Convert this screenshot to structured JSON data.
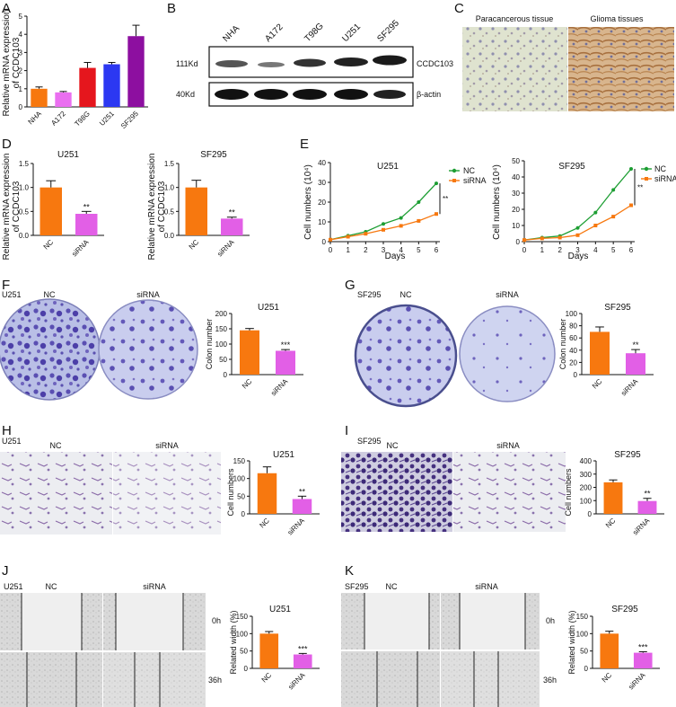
{
  "panels": {
    "A": "A",
    "B": "B",
    "C": "C",
    "D": "D",
    "E": "E",
    "F": "F",
    "G": "G",
    "H": "H",
    "I": "I",
    "J": "J",
    "K": "K"
  },
  "colors": {
    "orange": "#f7780f",
    "pink": "#ea6ff0",
    "red": "#e5161d",
    "blue": "#2c38f2",
    "purple": "#8d0fa0",
    "green": "#1d9e33",
    "siRNA_pink": "#e25fe6"
  },
  "panel_A": {
    "ylabel": "Relative mRNA expression of CCDC103",
    "ylabel_line1": "Relative mRNA expression",
    "ylabel_line2": "of CCDC103"
  },
  "panel_B": {
    "lanes": [
      "NHA",
      "A172",
      "T98G",
      "U251",
      "SF295"
    ],
    "band1_left": "111Kd",
    "band1_right": "CCDC103",
    "band2_left": "40Kd",
    "band2_right": "β-actin"
  },
  "panel_C": {
    "left_title": "Paracancerous tissue",
    "right_title": "Glioma tissues"
  },
  "panel_D": {
    "ylabel_line1": "Relative mRNA expression",
    "ylabel_line2": "of CCDC103",
    "sig": "**"
  },
  "panel_E": {
    "ylabel": "Cell numbers (10⁴)",
    "xlabel": "Days",
    "legend_nc": "NC",
    "legend_sirna": "siRNA",
    "sig": "**"
  },
  "panel_F": {
    "cell_line": "U251",
    "nc": "NC",
    "sirna": "siRNA",
    "ylabel": "Colon number",
    "sig": "***"
  },
  "panel_G": {
    "cell_line": "SF295",
    "nc": "NC",
    "sirna": "siRNA",
    "ylabel": "Colon number",
    "sig": "**"
  },
  "panel_H": {
    "cell_line": "U251",
    "nc": "NC",
    "sirna": "siRNA",
    "ylabel": "Cell numbers",
    "sig": "**"
  },
  "panel_I": {
    "cell_line": "SF295",
    "nc": "NC",
    "sirna": "siRNA",
    "ylabel": "Cell numbers",
    "sig": "**"
  },
  "panel_J": {
    "cell_line": "U251",
    "nc": "NC",
    "sirna": "siRNA",
    "t0": "0h",
    "t36": "36h",
    "ylabel": "Related width (%)",
    "sig": "***"
  },
  "panel_K": {
    "cell_line": "SF295",
    "nc": "NC",
    "sirna": "siRNA",
    "t0": "0h",
    "t36": "36h",
    "ylabel": "Related width (%)",
    "sig": "***"
  },
  "chart_data": [
    {
      "id": "A",
      "type": "bar",
      "categories": [
        "NHA",
        "A172",
        "T98G",
        "U251",
        "SF295"
      ],
      "values": [
        1.0,
        0.8,
        2.15,
        2.35,
        3.9
      ],
      "errors": [
        0.1,
        0.05,
        0.3,
        0.1,
        0.6
      ],
      "ylim": [
        0,
        5
      ],
      "yticks": [
        0,
        1,
        2,
        3,
        4,
        5
      ],
      "bar_colors": [
        "#f7780f",
        "#ea6ff0",
        "#e5161d",
        "#2c38f2",
        "#8d0fa0"
      ]
    },
    {
      "id": "D1",
      "type": "bar",
      "title": "U251",
      "categories": [
        "NC",
        "siRNA"
      ],
      "values": [
        1.0,
        0.45
      ],
      "errors": [
        0.14,
        0.05
      ],
      "ylim": [
        0,
        1.5
      ],
      "yticks": [
        0.0,
        0.5,
        1.0,
        1.5
      ]
    },
    {
      "id": "D2",
      "type": "bar",
      "title": "SF295",
      "categories": [
        "NC",
        "siRNA"
      ],
      "values": [
        1.0,
        0.35
      ],
      "errors": [
        0.15,
        0.03
      ],
      "ylim": [
        0,
        1.5
      ],
      "yticks": [
        0.0,
        0.5,
        1.0,
        1.5
      ]
    },
    {
      "id": "E1",
      "type": "line",
      "title": "U251",
      "x": [
        0,
        1,
        2,
        3,
        4,
        5,
        6
      ],
      "series": [
        {
          "name": "NC",
          "values": [
            1,
            3,
            5,
            9,
            12,
            20,
            29.5
          ]
        },
        {
          "name": "siRNA",
          "values": [
            1,
            2.5,
            4,
            6,
            8,
            10.5,
            14
          ]
        }
      ],
      "ylim": [
        0,
        40
      ],
      "yticks": [
        0,
        10,
        20,
        30,
        40
      ],
      "xlim": [
        0,
        6
      ]
    },
    {
      "id": "E2",
      "type": "line",
      "title": "SF295",
      "x": [
        0,
        1,
        2,
        3,
        4,
        5,
        6
      ],
      "series": [
        {
          "name": "NC",
          "values": [
            1,
            2.5,
            3.5,
            8.5,
            18,
            32,
            45
          ]
        },
        {
          "name": "siRNA",
          "values": [
            1,
            2,
            2.5,
            4,
            10,
            15.5,
            22.5
          ]
        }
      ],
      "ylim": [
        0,
        50
      ],
      "yticks": [
        0,
        10,
        20,
        30,
        40,
        50
      ],
      "xlim": [
        0,
        6
      ]
    },
    {
      "id": "F",
      "type": "bar",
      "title": "U251",
      "categories": [
        "NC",
        "siRNA"
      ],
      "values": [
        145,
        78
      ],
      "errors": [
        6,
        4
      ],
      "ylim": [
        0,
        200
      ],
      "yticks": [
        0,
        50,
        100,
        150,
        200
      ]
    },
    {
      "id": "G",
      "type": "bar",
      "title": "SF295",
      "categories": [
        "NC",
        "siRNA"
      ],
      "values": [
        70,
        35
      ],
      "errors": [
        8,
        6
      ],
      "ylim": [
        0,
        100
      ],
      "yticks": [
        0,
        20,
        40,
        60,
        80,
        100
      ]
    },
    {
      "id": "H",
      "type": "bar",
      "title": "U251",
      "categories": [
        "NC",
        "siRNA"
      ],
      "values": [
        115,
        42
      ],
      "errors": [
        18,
        8
      ],
      "ylim": [
        0,
        150
      ],
      "yticks": [
        0,
        50,
        100,
        150
      ]
    },
    {
      "id": "I",
      "type": "bar",
      "title": "SF295",
      "categories": [
        "NC",
        "siRNA"
      ],
      "values": [
        238,
        97
      ],
      "errors": [
        18,
        20
      ],
      "ylim": [
        0,
        400
      ],
      "yticks": [
        0,
        100,
        200,
        300,
        400
      ]
    },
    {
      "id": "J",
      "type": "bar",
      "title": "U251",
      "categories": [
        "NC",
        "siRNA"
      ],
      "values": [
        100,
        40
      ],
      "errors": [
        6,
        3
      ],
      "ylim": [
        0,
        150
      ],
      "yticks": [
        0,
        50,
        100,
        150
      ]
    },
    {
      "id": "K",
      "type": "bar",
      "title": "SF295",
      "categories": [
        "NC",
        "siRNA"
      ],
      "values": [
        100,
        45
      ],
      "errors": [
        7,
        3
      ],
      "ylim": [
        0,
        150
      ],
      "yticks": [
        0,
        50,
        100,
        150
      ]
    }
  ]
}
